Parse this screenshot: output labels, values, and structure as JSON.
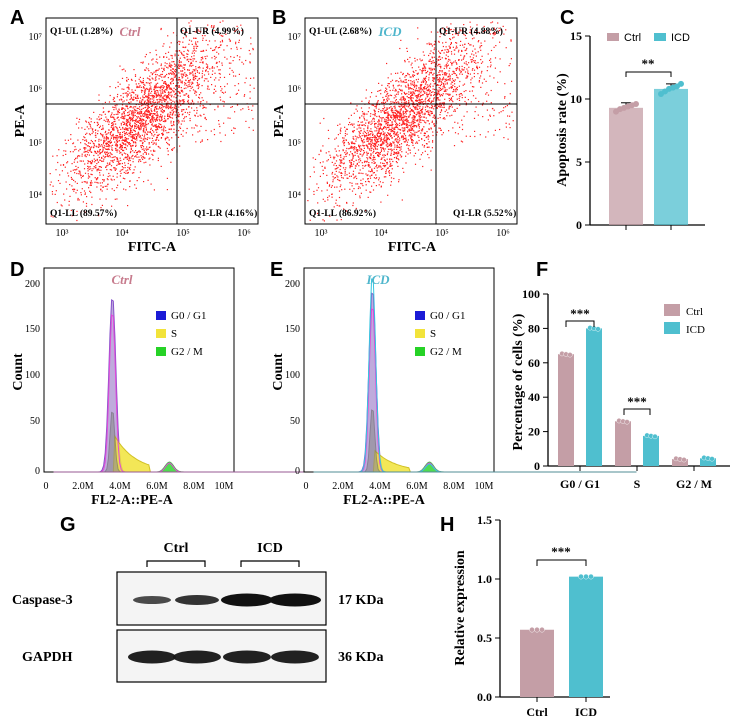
{
  "colors": {
    "ctrl": "#c49ea6",
    "icd": "#4fbfcf",
    "dot": "#ff2020",
    "ctrl_title": "#c77b8d",
    "icd_title": "#4fb6cc",
    "g0": "#1b1bd6",
    "s": "#f2e33a",
    "g2m": "#26d226"
  },
  "panels": {
    "A": "A",
    "B": "B",
    "C": "C",
    "D": "D",
    "E": "E",
    "F": "F",
    "G": "G",
    "H": "H"
  },
  "flow_A": {
    "title": "Ctrl",
    "ylabel": "PE-A",
    "xlabel": "FITC-A",
    "ul": "Q1-UL (1.28%)",
    "ur": "Q1-UR (4.99%)",
    "ll": "Q1-LL (89.57%)",
    "lr": "Q1-LR (4.16%)",
    "xticks": [
      "10³",
      "10⁴",
      "10⁵",
      "10⁶"
    ],
    "yticks": [
      "10⁷",
      "10⁶",
      "10⁵",
      "10⁴"
    ]
  },
  "flow_B": {
    "title": "ICD",
    "ylabel": "PE-A",
    "xlabel": "FITC-A",
    "ul": "Q1-UL (2.68%)",
    "ur": "Q1-UR (4.88%)",
    "ll": "Q1-LL (86.92%)",
    "lr": "Q1-LR (5.52%)",
    "xticks": [
      "10³",
      "10⁴",
      "10⁵",
      "10⁶"
    ],
    "yticks": [
      "10⁷",
      "10⁶",
      "10⁵",
      "10⁴"
    ]
  },
  "cc_D": {
    "title": "Ctrl",
    "ylabel": "Count",
    "xlabel": "FL2-A::PE-A",
    "xticks": [
      "0",
      "2.0M",
      "4.0M",
      "6.0M",
      "8.0M",
      "10M"
    ],
    "yticks": [
      "200",
      "150",
      "100",
      "50",
      "0"
    ],
    "legend": [
      "G0 / G1",
      "S",
      "G2 / M"
    ]
  },
  "cc_E": {
    "title": "ICD",
    "ylabel": "Count",
    "xlabel": "FL2-A::PE-A",
    "xticks": [
      "0",
      "2.0M",
      "4.0M",
      "6.0M",
      "8.0M",
      "10M"
    ],
    "yticks": [
      "200",
      "150",
      "100",
      "50",
      "0"
    ],
    "legend": [
      "G0 / G1",
      "S",
      "G2 / M"
    ]
  },
  "blot": {
    "ctrl_label": "Ctrl",
    "icd_label": "ICD",
    "row1": "Caspase-3",
    "row2": "GAPDH",
    "kda1": "17 KDa",
    "kda2": "36 KDa"
  },
  "chart_data": [
    {
      "id": "C",
      "type": "bar",
      "ylabel": "Apoptosis rate (%)",
      "ylim": [
        0,
        15
      ],
      "yticks": [
        "0",
        "5",
        "10",
        "15"
      ],
      "legend": [
        "Ctrl",
        "ICD"
      ],
      "categories": [
        "Ctrl",
        "ICD"
      ],
      "values": [
        9.3,
        10.8
      ],
      "points": [
        [
          9.0,
          9.2,
          9.3,
          9.4,
          9.5,
          9.6
        ],
        [
          10.4,
          10.6,
          10.8,
          10.9,
          11.0,
          11.2
        ]
      ],
      "significance": "**"
    },
    {
      "id": "F",
      "type": "bar",
      "ylabel": "Percentage of cells (%)",
      "ylim": [
        0,
        100
      ],
      "yticks": [
        "0",
        "20",
        "40",
        "60",
        "80",
        "100"
      ],
      "categories": [
        "G0 / G1",
        "S",
        "G2 / M"
      ],
      "series": [
        {
          "name": "Ctrl",
          "values": [
            65,
            26,
            4
          ]
        },
        {
          "name": "ICD",
          "values": [
            80,
            17.5,
            4.5
          ]
        }
      ],
      "significance": [
        "***",
        "***",
        ""
      ]
    },
    {
      "id": "H",
      "type": "bar",
      "ylabel": "Relative expression",
      "ylim": [
        0,
        1.5
      ],
      "yticks": [
        "0.0",
        "0.5",
        "1.0",
        "1.5"
      ],
      "categories": [
        "Ctrl",
        "ICD"
      ],
      "values": [
        0.57,
        1.02
      ],
      "significance": "***"
    }
  ]
}
